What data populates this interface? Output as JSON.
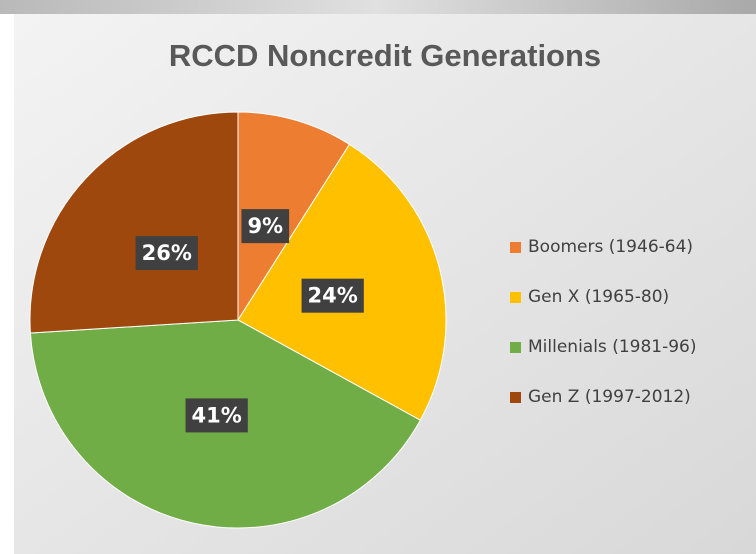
{
  "chart_data": {
    "type": "pie",
    "title": "RCCD Noncredit Generations",
    "categories": [
      "Boomers (1946-64)",
      "Gen X (1965-80)",
      "Millenials (1981-96)",
      "Gen Z (1997-2012)"
    ],
    "values": [
      9,
      24,
      41,
      26
    ],
    "value_labels": [
      "9%",
      "24%",
      "41%",
      "26%"
    ],
    "colors": [
      "#ed7d31",
      "#ffc000",
      "#70ad47",
      "#9e480e"
    ],
    "legend": "right"
  }
}
